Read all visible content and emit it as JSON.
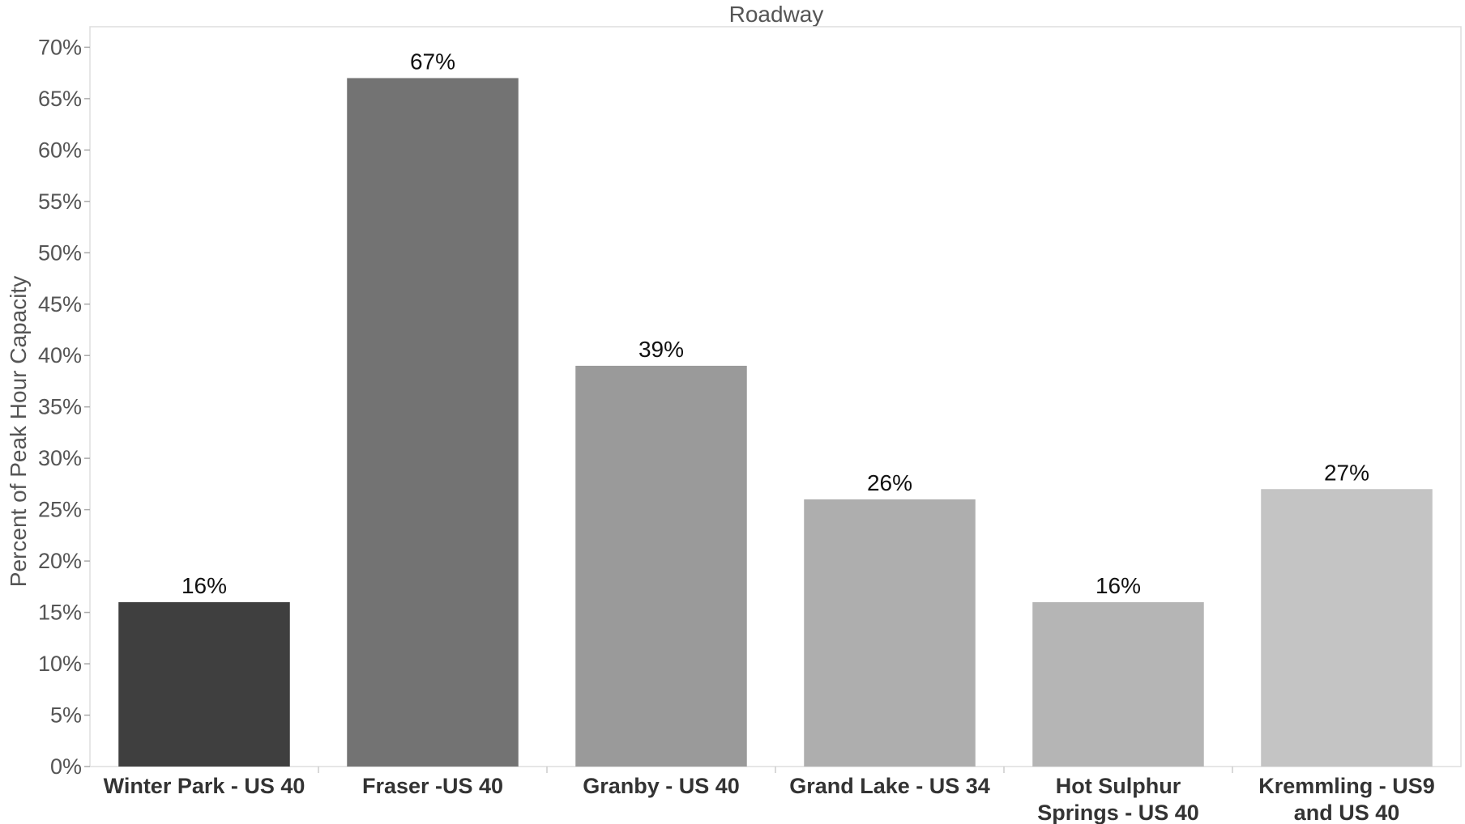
{
  "chart_data": {
    "type": "bar",
    "title": "Roadway",
    "ylabel": "Percent of Peak Hour Capacity",
    "xlabel": "",
    "categories": [
      [
        "Winter Park - US 40"
      ],
      [
        "Fraser -US 40"
      ],
      [
        "Granby - US 40"
      ],
      [
        "Grand Lake - US 34"
      ],
      [
        "Hot Sulphur",
        "Springs - US 40"
      ],
      [
        "Kremmling - US9",
        "and US 40"
      ]
    ],
    "values": [
      16,
      67,
      39,
      26,
      16,
      27
    ],
    "value_labels": [
      "16%",
      "67%",
      "39%",
      "26%",
      "16%",
      "27%"
    ],
    "bar_colors": [
      "#3f3f3f",
      "#737373",
      "#9a9a9a",
      "#aeaeae",
      "#b5b5b5",
      "#c4c4c4"
    ],
    "ylim": [
      0,
      72
    ],
    "yticks": [
      0,
      5,
      10,
      15,
      20,
      25,
      30,
      35,
      40,
      45,
      50,
      55,
      60,
      65,
      70
    ],
    "ytick_labels": [
      "0%",
      "5%",
      "10%",
      "15%",
      "20%",
      "25%",
      "30%",
      "35%",
      "40%",
      "45%",
      "50%",
      "55%",
      "60%",
      "65%",
      "70%"
    ],
    "grid": false,
    "legend": "none"
  }
}
